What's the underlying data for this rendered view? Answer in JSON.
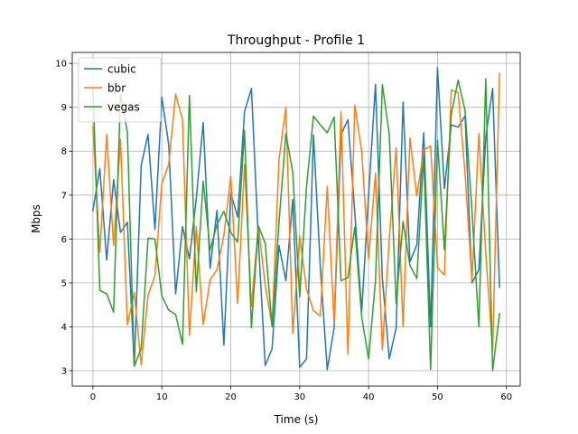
{
  "chart_data": {
    "type": "line",
    "title": "Throughput - Profile 1",
    "xlabel": "Time (s)",
    "ylabel": "Mbps",
    "xlim": [
      -3,
      62
    ],
    "ylim": [
      2.65,
      10.25
    ],
    "xticks": [
      0,
      10,
      20,
      30,
      40,
      50,
      60
    ],
    "yticks": [
      3,
      4,
      5,
      6,
      7,
      8,
      9,
      10
    ],
    "grid": true,
    "legend_position": "top-left",
    "x": [
      0,
      1,
      2,
      3,
      4,
      5,
      6,
      7,
      8,
      9,
      10,
      11,
      12,
      13,
      14,
      15,
      16,
      17,
      18,
      19,
      20,
      21,
      22,
      23,
      24,
      25,
      26,
      27,
      28,
      29,
      30,
      31,
      32,
      33,
      34,
      35,
      36,
      37,
      38,
      39,
      40,
      41,
      42,
      43,
      44,
      45,
      46,
      47,
      48,
      49,
      50,
      51,
      52,
      53,
      54,
      55,
      56,
      57,
      58,
      59
    ],
    "series": [
      {
        "name": "cubic",
        "color": "#1f77b4",
        "values": [
          6.65,
          7.6,
          5.52,
          7.35,
          6.15,
          6.38,
          3.1,
          7.68,
          8.38,
          6.22,
          9.23,
          8.15,
          4.75,
          6.28,
          5.55,
          6.92,
          8.65,
          5.33,
          6.65,
          3.58,
          7.05,
          6.5,
          8.9,
          9.43,
          6.0,
          3.12,
          3.5,
          5.85,
          5.05,
          6.9,
          3.08,
          3.27,
          8.37,
          5.35,
          3.02,
          3.98,
          8.38,
          8.72,
          6.6,
          4.35,
          7.0,
          9.52,
          5.1,
          3.27,
          3.98,
          9.12,
          5.48,
          5.87,
          8.42,
          4.0,
          9.9,
          7.15,
          8.6,
          8.55,
          8.8,
          5.0,
          5.3,
          8.32,
          9.43,
          4.9
        ]
      },
      {
        "name": "bbr",
        "color": "#ff7f0e",
        "values": [
          8.55,
          5.7,
          8.38,
          5.85,
          8.27,
          4.05,
          4.78,
          3.13,
          4.72,
          5.17,
          7.27,
          7.7,
          9.3,
          8.72,
          3.8,
          6.28,
          4.05,
          5.07,
          5.3,
          6.08,
          7.43,
          4.53,
          7.7,
          4.47,
          6.3,
          4.95,
          4.02,
          7.8,
          9.0,
          3.85,
          6.07,
          4.85,
          4.37,
          4.25,
          7.2,
          4.1,
          8.9,
          3.37,
          9.05,
          8.0,
          5.55,
          7.5,
          3.48,
          6.0,
          8.08,
          4.0,
          8.3,
          6.98,
          8.03,
          8.12,
          5.35,
          5.18,
          9.4,
          9.33,
          7.5,
          5.05,
          8.4,
          5.68,
          3.45,
          9.77
        ]
      },
      {
        "name": "vegas",
        "color": "#2ca02c",
        "values": [
          9.47,
          4.83,
          4.75,
          4.33,
          9.3,
          8.43,
          3.1,
          3.5,
          6.02,
          6.0,
          4.7,
          4.38,
          4.28,
          3.6,
          9.27,
          4.8,
          7.32,
          5.75,
          6.33,
          6.63,
          6.15,
          5.93,
          8.47,
          3.98,
          6.3,
          5.9,
          4.0,
          6.38,
          8.4,
          7.52,
          4.68,
          7.2,
          8.8,
          8.6,
          8.42,
          8.78,
          5.05,
          5.12,
          6.27,
          4.22,
          3.27,
          5.05,
          9.52,
          8.38,
          4.53,
          6.4,
          5.4,
          5.1,
          7.9,
          3.03,
          8.25,
          5.75,
          8.85,
          9.62,
          8.93,
          6.65,
          4.0,
          9.65,
          3.0,
          4.3
        ]
      }
    ]
  }
}
